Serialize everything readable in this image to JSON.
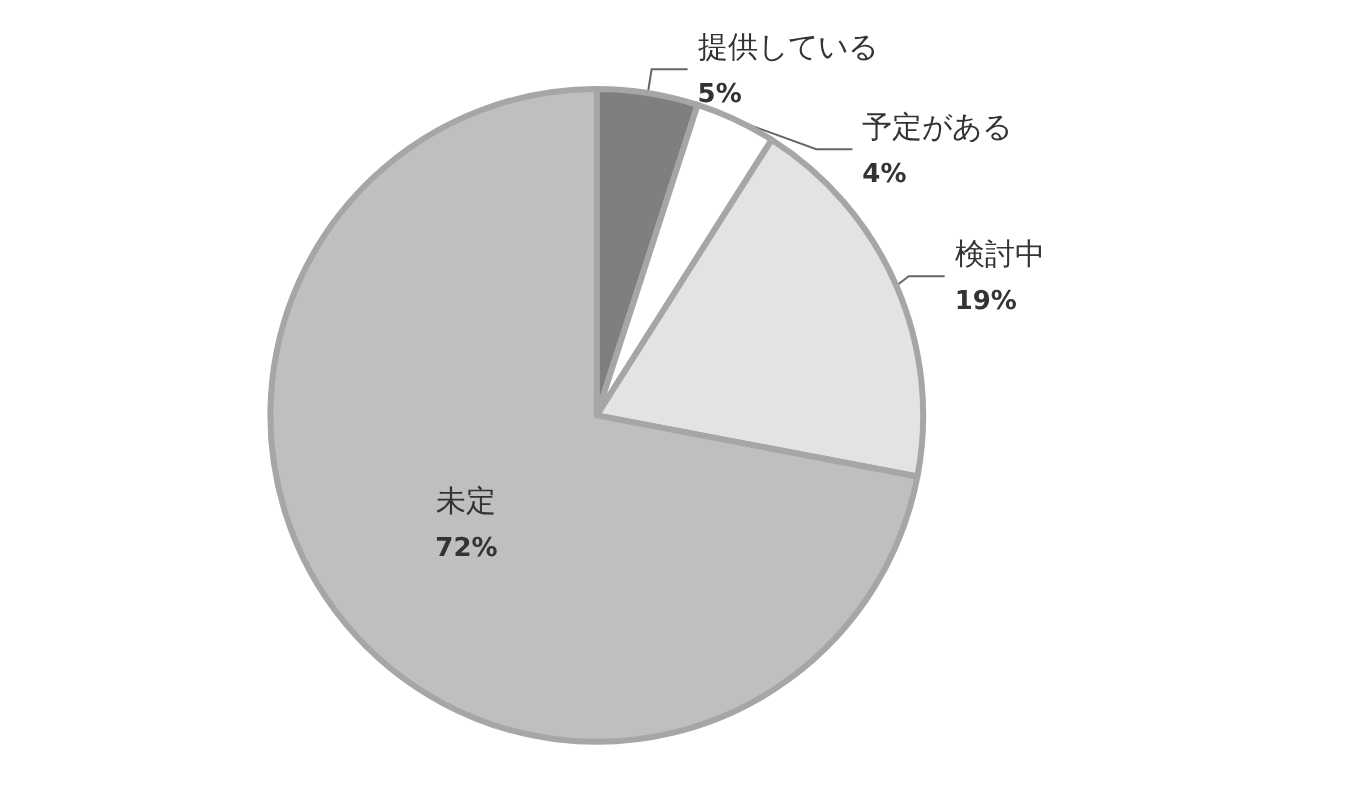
{
  "chart_data": {
    "type": "pie",
    "categories": [
      "提供している",
      "予定がある",
      "検討中",
      "未定"
    ],
    "values": [
      5,
      4,
      19,
      72
    ],
    "colors": [
      "#7f7f7f",
      "#ffffff",
      "#e3e3e3",
      "#bfbfbf"
    ],
    "value_labels": [
      "5%",
      "4%",
      "19%",
      "72%"
    ],
    "legend": false
  }
}
